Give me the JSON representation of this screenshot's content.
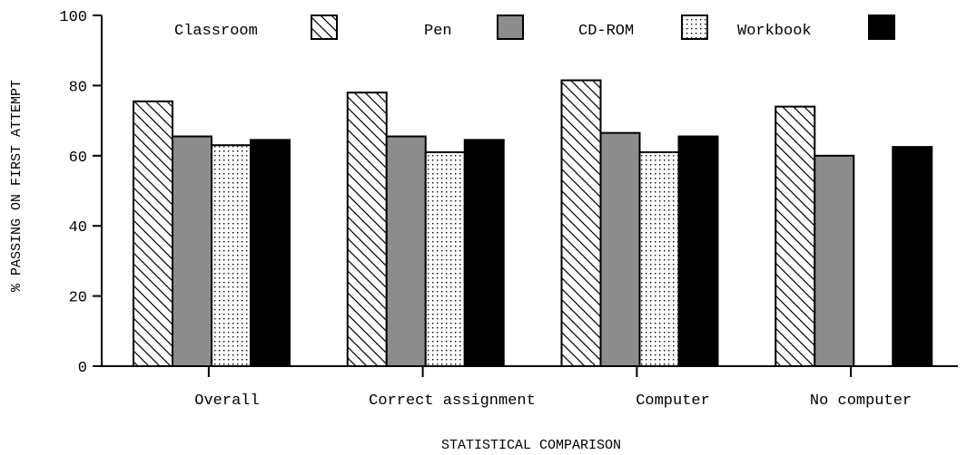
{
  "chart_data": {
    "type": "bar",
    "xlabel": "STATISTICAL COMPARISON",
    "ylabel": "% PASSING ON FIRST ATTEMPT",
    "ylim": [
      0,
      100
    ],
    "yticks": [
      "0",
      "20",
      "40",
      "60",
      "80",
      "100"
    ],
    "categories": [
      "Overall",
      "Correct assignment",
      "Computer",
      "No computer"
    ],
    "series": [
      {
        "name": "Classroom",
        "fill": "hatch",
        "values": [
          75.5,
          78,
          81.5,
          74
        ]
      },
      {
        "name": "Pen",
        "fill": "#8c8c8c",
        "values": [
          65.5,
          65.5,
          66.5,
          60
        ]
      },
      {
        "name": "CD-ROM",
        "fill": "dots",
        "values": [
          63,
          61,
          61,
          null
        ]
      },
      {
        "name": "Workbook",
        "fill": "#000000",
        "values": [
          64.5,
          64.5,
          65.5,
          62.5
        ]
      }
    ],
    "legend_position": "top-inside"
  }
}
